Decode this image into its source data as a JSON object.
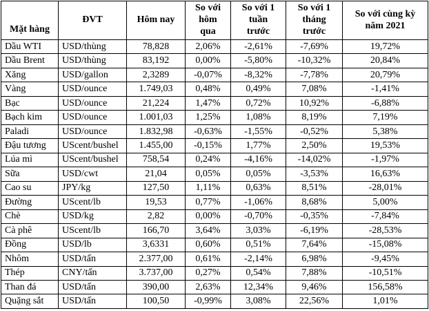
{
  "table": {
    "headers": [
      "Mặt hàng",
      "ĐVT",
      "Hôm nay",
      "So với\nhôm\nqua",
      "So với 1\ntuần\ntrước",
      "So với 1\ntháng\ntrước",
      "So với cùng kỳ\nnăm 2021"
    ],
    "rows": [
      [
        "Dầu WTI",
        "USD/thùng",
        "78,828",
        "2,06%",
        "-2,61%",
        "-7,69%",
        "19,72%"
      ],
      [
        "Dầu Brent",
        "USD/thùng",
        "83,192",
        "0,00%",
        "-5,80%",
        "-10,32%",
        "20,84%"
      ],
      [
        "Xăng",
        "USD/gallon",
        "2,3289",
        "-0,07%",
        "-8,32%",
        "-7,78%",
        "20,79%"
      ],
      [
        "Vàng",
        "USD/ounce",
        "1.749,03",
        "0,48%",
        "0,49%",
        "7,08%",
        "-1,41%"
      ],
      [
        "Bạc",
        "USD/ounce",
        "21,224",
        "1,47%",
        "0,72%",
        "10,92%",
        "-6,88%"
      ],
      [
        "Bạch kim",
        "USD/ounce",
        "1.001,03",
        "1,25%",
        "1,08%",
        "8,19%",
        "7,19%"
      ],
      [
        "Paladi",
        "USD/ounce",
        "1.832,98",
        "-0,63%",
        "-1,55%",
        "-0,52%",
        "5,38%"
      ],
      [
        "Đậu tương",
        "UScent/bushel",
        "1.455,00",
        "-0,15%",
        "1,77%",
        "2,50%",
        "19,53%"
      ],
      [
        "Lúa mì",
        "UScent/bushel",
        "758,54",
        "0,24%",
        "-4,16%",
        "-14,02%",
        "-1,97%"
      ],
      [
        "Sữa",
        "USD/cwt",
        "21,04",
        "0,05%",
        "0,05%",
        "-3,53%",
        "16,63%"
      ],
      [
        "Cao su",
        "JPY/kg",
        "127,50",
        "1,11%",
        "0,63%",
        "8,51%",
        "-28,01%"
      ],
      [
        "Đường",
        "UScent/lb",
        "19,53",
        "0,77%",
        "-1,06%",
        "8,68%",
        "5,00%"
      ],
      [
        "Chè",
        "USD/kg",
        "2,82",
        "0,00%",
        "-0,70%",
        "-0,35%",
        "-7,84%"
      ],
      [
        "Cà phê",
        "UScent/lb",
        "166,70",
        "3,64%",
        "3,03%",
        "-6,19%",
        "-28,53%"
      ],
      [
        "Đồng",
        "USD/lb",
        "3,6331",
        "0,60%",
        "0,51%",
        "7,64%",
        "-15,08%"
      ],
      [
        "Nhôm",
        "USD/tấn",
        "2.377,00",
        "0,61%",
        "-2,14%",
        "6,98%",
        "-9,45%"
      ],
      [
        "Thép",
        "CNY/tấn",
        "3.737,00",
        "0,27%",
        "0,54%",
        "7,88%",
        "-10,51%"
      ],
      [
        "Than đá",
        "USD/tấn",
        "390,00",
        "2,63%",
        "12,34%",
        "9,46%",
        "156,58%"
      ],
      [
        "Quặng sắt",
        "USD/tấn",
        "100,50",
        "-0,99%",
        "3,08%",
        "22,56%",
        "1,01%"
      ]
    ]
  }
}
